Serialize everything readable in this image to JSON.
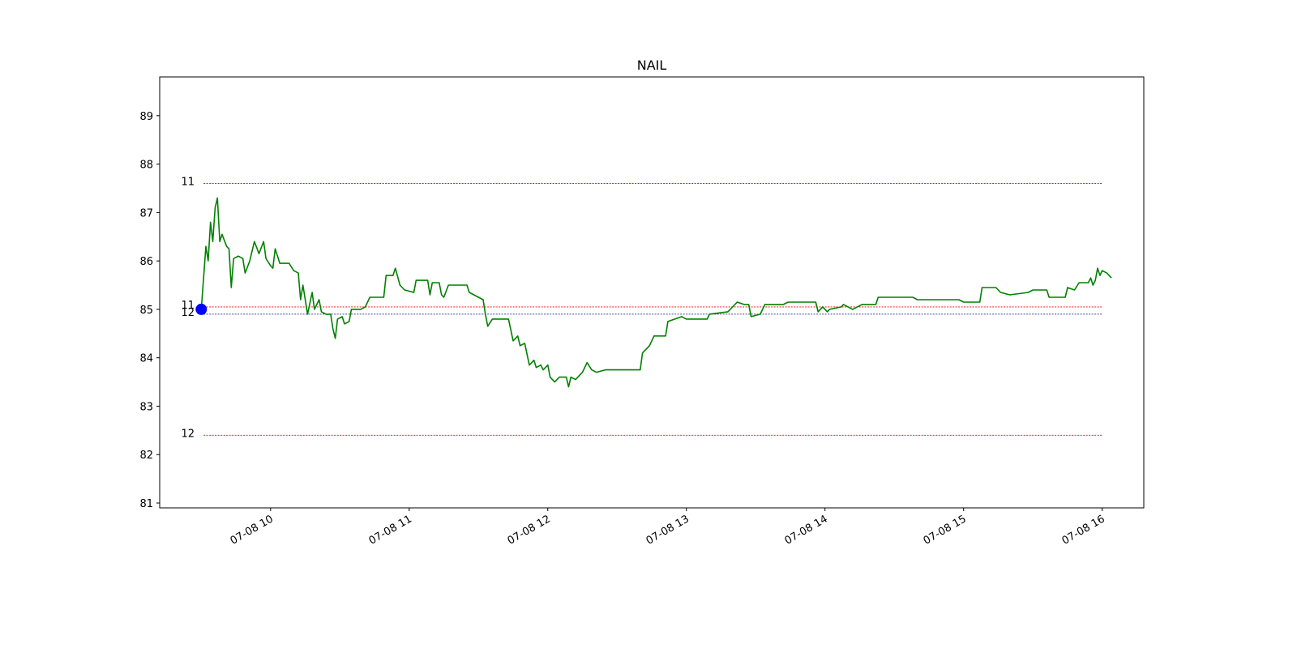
{
  "chart_data": {
    "type": "line",
    "title": "NAIL",
    "xlabel": "",
    "ylabel": "",
    "grid": false,
    "x_range": [
      "07-08 09:12",
      "07-08 16:18"
    ],
    "ylim": [
      80.9,
      89.8
    ],
    "y_ticks": [
      81,
      82,
      83,
      84,
      85,
      86,
      87,
      88,
      89
    ],
    "x_ticks": [
      {
        "value": "07-08 10:00",
        "label": "07-08 10"
      },
      {
        "value": "07-08 11:00",
        "label": "07-08 11"
      },
      {
        "value": "07-08 12:00",
        "label": "07-08 12"
      },
      {
        "value": "07-08 13:00",
        "label": "07-08 13"
      },
      {
        "value": "07-08 14:00",
        "label": "07-08 14"
      },
      {
        "value": "07-08 15:00",
        "label": "07-08 15"
      },
      {
        "value": "07-08 16:00",
        "label": "07-08 16"
      }
    ],
    "series": [
      {
        "color": "#008000",
        "points": [
          [
            "07-08 09:30",
            85.0
          ],
          [
            "07-08 09:32",
            86.3
          ],
          [
            "07-08 09:33",
            86.0
          ],
          [
            "07-08 09:34",
            86.8
          ],
          [
            "07-08 09:35",
            86.4
          ],
          [
            "07-08 09:36",
            87.1
          ],
          [
            "07-08 09:37",
            87.3
          ],
          [
            "07-08 09:38",
            86.4
          ],
          [
            "07-08 09:39",
            86.55
          ],
          [
            "07-08 09:41",
            86.3
          ],
          [
            "07-08 09:42",
            86.25
          ],
          [
            "07-08 09:43",
            85.45
          ],
          [
            "07-08 09:44",
            86.05
          ],
          [
            "07-08 09:46",
            86.1
          ],
          [
            "07-08 09:48",
            86.05
          ],
          [
            "07-08 09:49",
            85.75
          ],
          [
            "07-08 09:51",
            86.0
          ],
          [
            "07-08 09:53",
            86.4
          ],
          [
            "07-08 09:55",
            86.15
          ],
          [
            "07-08 09:57",
            86.4
          ],
          [
            "07-08 09:58",
            86.05
          ],
          [
            "07-08 10:00",
            85.9
          ],
          [
            "07-08 10:01",
            85.85
          ],
          [
            "07-08 10:02",
            86.25
          ],
          [
            "07-08 10:04",
            85.95
          ],
          [
            "07-08 10:08",
            85.95
          ],
          [
            "07-08 10:10",
            85.8
          ],
          [
            "07-08 10:12",
            85.75
          ],
          [
            "07-08 10:13",
            85.2
          ],
          [
            "07-08 10:14",
            85.5
          ],
          [
            "07-08 10:16",
            84.9
          ],
          [
            "07-08 10:18",
            85.35
          ],
          [
            "07-08 10:19",
            85.0
          ],
          [
            "07-08 10:21",
            85.2
          ],
          [
            "07-08 10:22",
            84.95
          ],
          [
            "07-08 10:24",
            84.9
          ],
          [
            "07-08 10:26",
            84.9
          ],
          [
            "07-08 10:27",
            84.6
          ],
          [
            "07-08 10:28",
            84.4
          ],
          [
            "07-08 10:29",
            84.8
          ],
          [
            "07-08 10:31",
            84.85
          ],
          [
            "07-08 10:32",
            84.7
          ],
          [
            "07-08 10:34",
            84.75
          ],
          [
            "07-08 10:35",
            85.0
          ],
          [
            "07-08 10:39",
            85.0
          ],
          [
            "07-08 10:41",
            85.05
          ],
          [
            "07-08 10:43",
            85.25
          ],
          [
            "07-08 10:49",
            85.25
          ],
          [
            "07-08 10:50",
            85.7
          ],
          [
            "07-08 10:53",
            85.7
          ],
          [
            "07-08 10:54",
            85.85
          ],
          [
            "07-08 10:56",
            85.5
          ],
          [
            "07-08 10:58",
            85.4
          ],
          [
            "07-08 11:02",
            85.35
          ],
          [
            "07-08 11:03",
            85.6
          ],
          [
            "07-08 11:08",
            85.6
          ],
          [
            "07-08 11:09",
            85.3
          ],
          [
            "07-08 11:10",
            85.55
          ],
          [
            "07-08 11:13",
            85.55
          ],
          [
            "07-08 11:14",
            85.3
          ],
          [
            "07-08 11:15",
            85.25
          ],
          [
            "07-08 11:17",
            85.5
          ],
          [
            "07-08 11:25",
            85.5
          ],
          [
            "07-08 11:26",
            85.35
          ],
          [
            "07-08 11:28",
            85.3
          ],
          [
            "07-08 11:32",
            85.2
          ],
          [
            "07-08 11:33",
            84.9
          ],
          [
            "07-08 11:34",
            84.65
          ],
          [
            "07-08 11:36",
            84.8
          ],
          [
            "07-08 11:43",
            84.8
          ],
          [
            "07-08 11:45",
            84.35
          ],
          [
            "07-08 11:47",
            84.45
          ],
          [
            "07-08 11:48",
            84.25
          ],
          [
            "07-08 11:50",
            84.3
          ],
          [
            "07-08 11:52",
            83.85
          ],
          [
            "07-08 11:54",
            83.95
          ],
          [
            "07-08 11:55",
            83.8
          ],
          [
            "07-08 11:57",
            83.85
          ],
          [
            "07-08 11:58",
            83.75
          ],
          [
            "07-08 12:00",
            83.85
          ],
          [
            "07-08 12:01",
            83.6
          ],
          [
            "07-08 12:03",
            83.5
          ],
          [
            "07-08 12:05",
            83.6
          ],
          [
            "07-08 12:08",
            83.6
          ],
          [
            "07-08 12:09",
            83.4
          ],
          [
            "07-08 12:10",
            83.6
          ],
          [
            "07-08 12:12",
            83.55
          ],
          [
            "07-08 12:15",
            83.7
          ],
          [
            "07-08 12:17",
            83.9
          ],
          [
            "07-08 12:19",
            83.75
          ],
          [
            "07-08 12:21",
            83.7
          ],
          [
            "07-08 12:25",
            83.75
          ],
          [
            "07-08 12:40",
            83.75
          ],
          [
            "07-08 12:41",
            84.1
          ],
          [
            "07-08 12:44",
            84.25
          ],
          [
            "07-08 12:46",
            84.45
          ],
          [
            "07-08 12:51",
            84.45
          ],
          [
            "07-08 12:52",
            84.75
          ],
          [
            "07-08 12:55",
            84.8
          ],
          [
            "07-08 12:58",
            84.85
          ],
          [
            "07-08 13:00",
            84.8
          ],
          [
            "07-08 13:09",
            84.8
          ],
          [
            "07-08 13:10",
            84.9
          ],
          [
            "07-08 13:18",
            84.95
          ],
          [
            "07-08 13:20",
            85.05
          ],
          [
            "07-08 13:22",
            85.15
          ],
          [
            "07-08 13:25",
            85.1
          ],
          [
            "07-08 13:27",
            85.1
          ],
          [
            "07-08 13:28",
            84.85
          ],
          [
            "07-08 13:32",
            84.9
          ],
          [
            "07-08 13:34",
            85.1
          ],
          [
            "07-08 13:42",
            85.1
          ],
          [
            "07-08 13:44",
            85.15
          ],
          [
            "07-08 13:56",
            85.15
          ],
          [
            "07-08 13:57",
            84.95
          ],
          [
            "07-08 13:59",
            85.05
          ],
          [
            "07-08 14:01",
            84.95
          ],
          [
            "07-08 14:02",
            85.0
          ],
          [
            "07-08 14:07",
            85.05
          ],
          [
            "07-08 14:08",
            85.1
          ],
          [
            "07-08 14:12",
            85.0
          ],
          [
            "07-08 14:16",
            85.1
          ],
          [
            "07-08 14:22",
            85.1
          ],
          [
            "07-08 14:23",
            85.25
          ],
          [
            "07-08 14:38",
            85.25
          ],
          [
            "07-08 14:40",
            85.2
          ],
          [
            "07-08 14:58",
            85.2
          ],
          [
            "07-08 15:00",
            85.15
          ],
          [
            "07-08 15:07",
            85.15
          ],
          [
            "07-08 15:08",
            85.45
          ],
          [
            "07-08 15:14",
            85.45
          ],
          [
            "07-08 15:16",
            85.35
          ],
          [
            "07-08 15:20",
            85.3
          ],
          [
            "07-08 15:28",
            85.35
          ],
          [
            "07-08 15:30",
            85.4
          ],
          [
            "07-08 15:36",
            85.4
          ],
          [
            "07-08 15:37",
            85.25
          ],
          [
            "07-08 15:44",
            85.25
          ],
          [
            "07-08 15:45",
            85.45
          ],
          [
            "07-08 15:48",
            85.4
          ],
          [
            "07-08 15:50",
            85.55
          ],
          [
            "07-08 15:54",
            85.55
          ],
          [
            "07-08 15:55",
            85.65
          ],
          [
            "07-08 15:56",
            85.5
          ],
          [
            "07-08 15:57",
            85.6
          ],
          [
            "07-08 15:58",
            85.85
          ],
          [
            "07-08 15:59",
            85.7
          ],
          [
            "07-08 16:00",
            85.8
          ],
          [
            "07-08 16:02",
            85.75
          ],
          [
            "07-08 16:04",
            85.65
          ]
        ]
      }
    ],
    "marker": {
      "x": "07-08 09:30",
      "y": 85.0,
      "color": "#0000ff"
    },
    "levels": [
      {
        "label": "11",
        "y": 87.6,
        "color": "#0000ff",
        "x_start": "07-08 09:31",
        "x_end": "07-08 16:00"
      },
      {
        "label": "11",
        "y": 85.05,
        "color": "#ff0000",
        "x_start": "07-08 09:31",
        "x_end": "07-08 16:00"
      },
      {
        "label": "12",
        "y": 84.9,
        "color": "#000080",
        "x_start": "07-08 09:31",
        "x_end": "07-08 16:00"
      },
      {
        "label": "12",
        "y": 82.4,
        "color": "#ff0000",
        "x_start": "07-08 09:31",
        "x_end": "07-08 16:00"
      }
    ]
  }
}
